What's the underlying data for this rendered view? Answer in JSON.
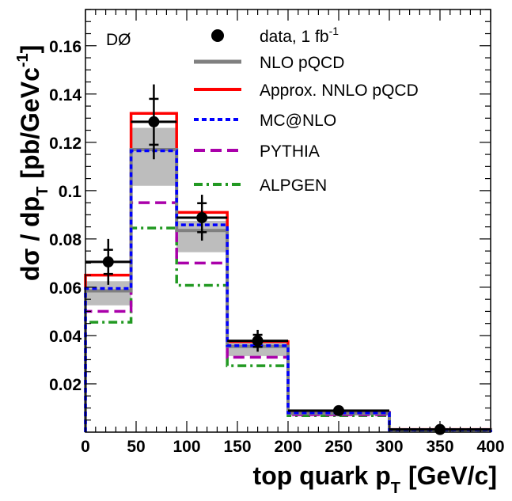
{
  "chart_data": {
    "type": "histogram",
    "experiment_label": "DØ",
    "xlabel": "top quark p",
    "xlabel_sub": "T",
    "xlabel_unit": "[GeV/c]",
    "ylabel_parts": {
      "main": "dσ / dp",
      "sub": "T",
      "unit": "[pb/GeVc",
      "sup": "-1",
      "close": "]"
    },
    "xlim": [
      0,
      400
    ],
    "ylim": [
      0,
      0.175
    ],
    "xticks": [
      0,
      50,
      100,
      150,
      200,
      250,
      300,
      350,
      400
    ],
    "yticks": [
      0.02,
      0.04,
      0.06,
      0.08,
      0.1,
      0.12,
      0.14,
      0.16
    ],
    "ytick_labels": [
      "0.02",
      "0.04",
      "0.06",
      "0.08",
      "0.1",
      "0.12",
      "0.14",
      "0.16"
    ],
    "bin_edges": [
      0,
      45,
      90,
      140,
      200,
      300,
      400
    ],
    "data_points": {
      "legend": "data, 1 fb",
      "legend_sup": "-1",
      "x": [
        22.5,
        67.5,
        115,
        170,
        250,
        350
      ],
      "y": [
        0.0705,
        0.1285,
        0.0888,
        0.0378,
        0.0089,
        0.0011
      ],
      "stat_err": [
        0.005,
        0.0095,
        0.006,
        0.0025,
        0.0005,
        0.0002
      ],
      "total_err": [
        0.0095,
        0.0155,
        0.0095,
        0.0045,
        0.0009,
        0.0003
      ]
    },
    "nlo_band": {
      "low": [
        0.0525,
        0.102,
        0.0745,
        0.0315,
        0.0068,
        0.0008
      ],
      "high": [
        0.0625,
        0.126,
        0.0875,
        0.0375,
        0.0085,
        0.0011
      ]
    },
    "series": [
      {
        "name": "NLO pQCD",
        "color": "#808080",
        "dash": "solid",
        "values": [
          0.0585,
          0.117,
          0.0835,
          0.0355,
          0.0078,
          0.001
        ]
      },
      {
        "name": "Approx. NNLO pQCD",
        "color": "#ff0000",
        "dash": "solid",
        "values": [
          0.065,
          0.132,
          0.091,
          0.0375,
          0.0082,
          0.0011
        ]
      },
      {
        "name": "MC@NLO",
        "color": "#0000ff",
        "dash": "dotted",
        "values": [
          0.0595,
          0.1165,
          0.0858,
          0.0358,
          0.008,
          0.001
        ]
      },
      {
        "name": "PYTHIA",
        "color": "#aa00aa",
        "dash": "dashed",
        "values": [
          0.05,
          0.095,
          0.07,
          0.031,
          0.0072,
          0.0009
        ]
      },
      {
        "name": "ALPGEN",
        "color": "#229922",
        "dash": "dashdot",
        "values": [
          0.0455,
          0.0845,
          0.0608,
          0.0275,
          0.0068,
          0.0008
        ]
      }
    ],
    "data_line_color": "#000000"
  }
}
